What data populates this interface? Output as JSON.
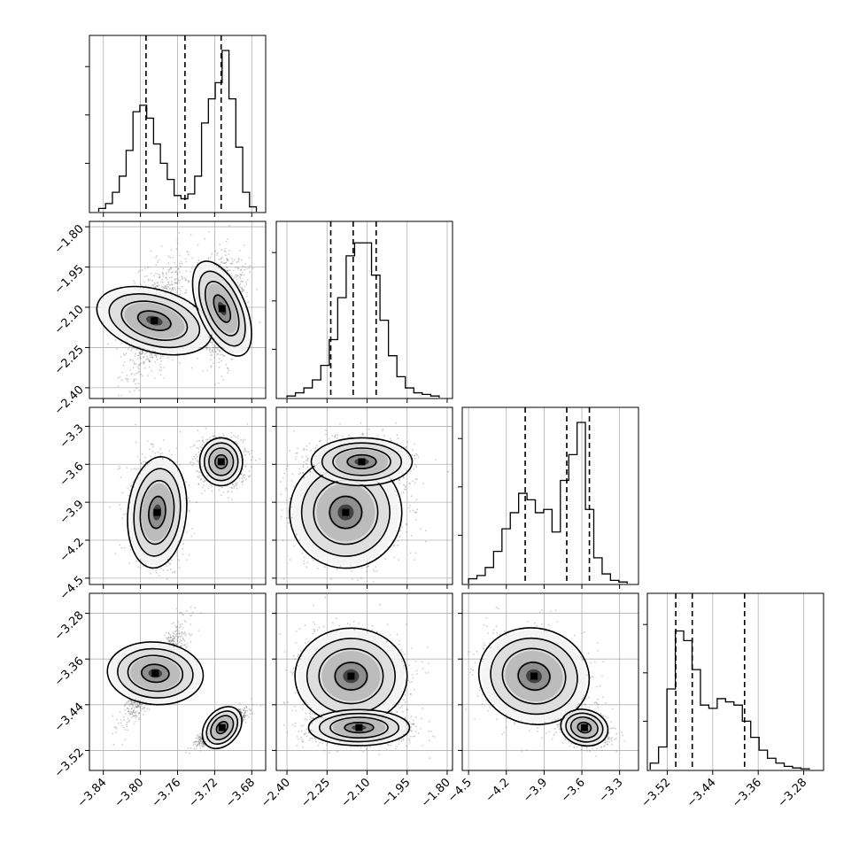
{
  "chart_data": {
    "type": "corner",
    "title": "",
    "parameters": [
      {
        "range": [
          -3.855,
          -3.665
        ],
        "ticks": [
          "−3.84",
          "−3.80",
          "−3.76",
          "−3.72",
          "−3.68"
        ],
        "tick_values": [
          -3.84,
          -3.8,
          -3.76,
          -3.72,
          -3.68
        ]
      },
      {
        "range": [
          -2.44,
          -1.78
        ],
        "ticks": [
          "−2.40",
          "−2.25",
          "−2.10",
          "−1.95",
          "−1.80"
        ],
        "tick_values": [
          -2.4,
          -2.25,
          -2.1,
          -1.95,
          -1.8
        ]
      },
      {
        "range": [
          -4.55,
          -3.15
        ],
        "ticks": [
          "−4.5",
          "−4.2",
          "−3.9",
          "−3.6",
          "−3.3"
        ],
        "tick_values": [
          -4.5,
          -4.2,
          -3.9,
          -3.6,
          -3.3
        ]
      },
      {
        "range": [
          -3.555,
          -3.245
        ],
        "ticks": [
          "−3.52",
          "−3.44",
          "−3.36",
          "−3.28"
        ],
        "tick_values": [
          -3.52,
          -3.44,
          -3.36,
          -3.28
        ]
      }
    ],
    "histograms": [
      {
        "edges_range": [
          -3.845,
          -3.675
        ],
        "counts": [
          0.02,
          0.05,
          0.12,
          0.22,
          0.38,
          0.62,
          0.66,
          0.58,
          0.42,
          0.3,
          0.2,
          0.1,
          0.08,
          0.11,
          0.22,
          0.55,
          0.7,
          0.8,
          1.0,
          0.7,
          0.4,
          0.12,
          0.03
        ],
        "quantiles": [
          -3.794,
          -3.752,
          -3.713
        ]
      },
      {
        "edges_range": [
          -2.4,
          -1.83
        ],
        "counts": [
          0.01,
          0.03,
          0.06,
          0.11,
          0.2,
          0.36,
          0.62,
          0.88,
          0.96,
          0.96,
          0.76,
          0.48,
          0.26,
          0.13,
          0.06,
          0.03,
          0.02,
          0.01
        ],
        "quantiles": [
          -2.236,
          -2.152,
          -2.066
        ]
      },
      {
        "edges_range": [
          -4.5,
          -3.24
        ],
        "counts": [
          0.03,
          0.05,
          0.1,
          0.2,
          0.34,
          0.44,
          0.56,
          0.52,
          0.44,
          0.46,
          0.32,
          0.64,
          0.8,
          1.0,
          0.46,
          0.16,
          0.06,
          0.02,
          0.01
        ],
        "quantiles": [
          -4.05,
          -3.72,
          -3.54
        ]
      },
      {
        "edges_range": [
          -3.55,
          -3.27
        ],
        "counts": [
          0.04,
          0.14,
          0.5,
          0.86,
          0.8,
          0.62,
          0.4,
          0.38,
          0.44,
          0.42,
          0.4,
          0.3,
          0.2,
          0.12,
          0.07,
          0.04,
          0.02,
          0.01,
          0.005
        ],
        "quantiles": [
          -3.505,
          -3.476,
          -3.384
        ]
      }
    ],
    "scatter_panels": [
      {
        "row": 1,
        "col": 0,
        "clusters": [
          {
            "center": [
              -3.785,
              -2.15
            ],
            "sigma": [
              0.016,
              0.105
            ],
            "rho": 0.55,
            "weight": 0.45
          },
          {
            "center": [
              -3.712,
              -2.105
            ],
            "sigma": [
              0.012,
              0.09
            ],
            "rho": 0.2,
            "weight": 0.55
          }
        ]
      },
      {
        "row": 2,
        "col": 0,
        "clusters": [
          {
            "center": [
              -3.782,
              -3.98
            ],
            "sigma": [
              0.015,
              0.21
            ],
            "rho": -0.05,
            "weight": 0.45
          },
          {
            "center": [
              -3.713,
              -3.58
            ],
            "sigma": [
              0.011,
              0.09
            ],
            "rho": 0.0,
            "weight": 0.55
          }
        ]
      },
      {
        "row": 2,
        "col": 1,
        "clusters": [
          {
            "center": [
              -2.18,
              -3.98
            ],
            "sigma": [
              0.1,
              0.21
            ],
            "rho": -0.05,
            "weight": 0.45
          },
          {
            "center": [
              -2.12,
              -3.58
            ],
            "sigma": [
              0.09,
              0.09
            ],
            "rho": 0.0,
            "weight": 0.55
          }
        ]
      },
      {
        "row": 3,
        "col": 0,
        "clusters": [
          {
            "center": [
              -3.784,
              -3.385
            ],
            "sigma": [
              0.016,
              0.04
            ],
            "rho": 0.88,
            "weight": 0.45
          },
          {
            "center": [
              -3.712,
              -3.48
            ],
            "sigma": [
              0.012,
              0.014
            ],
            "rho": 0.85,
            "weight": 0.55
          }
        ]
      },
      {
        "row": 3,
        "col": 1,
        "clusters": [
          {
            "center": [
              -2.16,
              -3.39
            ],
            "sigma": [
              0.1,
              0.04
            ],
            "rho": 0.0,
            "weight": 0.45
          },
          {
            "center": [
              -2.13,
              -3.48
            ],
            "sigma": [
              0.09,
              0.015
            ],
            "rho": 0.0,
            "weight": 0.55
          }
        ]
      },
      {
        "row": 3,
        "col": 2,
        "clusters": [
          {
            "center": [
              -3.98,
              -3.39
            ],
            "sigma": [
              0.21,
              0.04
            ],
            "rho": -0.25,
            "weight": 0.45
          },
          {
            "center": [
              -3.58,
              -3.48
            ],
            "sigma": [
              0.09,
              0.015
            ],
            "rho": -0.3,
            "weight": 0.55
          }
        ]
      }
    ],
    "grid": true,
    "colors": {
      "hist": "#000000",
      "points": "#4d4d4d",
      "contour": "#000000",
      "grid": "#b0b0b0",
      "axes": "#000000"
    }
  }
}
